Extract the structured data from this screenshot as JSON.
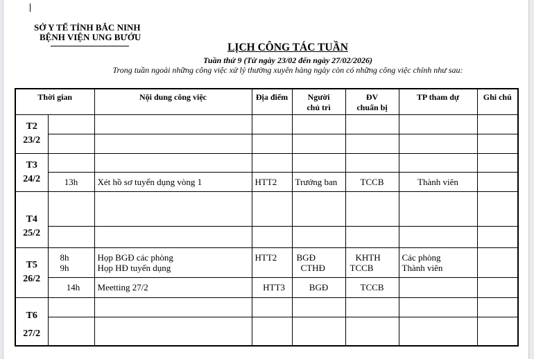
{
  "header": {
    "org_line1": "SỞ Y TẾ TỈNH BẮC NINH",
    "org_line2": "BỆNH VIỆN UNG BƯỚU",
    "title": "LỊCH CÔNG TÁC TUẦN",
    "subtitle": "Tuần thứ 9 (Từ ngày 23/02 đến ngày 27/02/2026)",
    "description": "Trong tuần ngoài những công việc xử lý thường xuyên hàng ngày còn có những công việc chính như sau:"
  },
  "table": {
    "columns": [
      "Thời gian",
      "Nội dung công việc",
      "Địa điểm",
      "Người chủ trì",
      "ĐV chuẩn bị",
      "TP tham dự",
      "Ghi chú"
    ],
    "col_head": {
      "nguoi1": "Người",
      "nguoi2": "chủ trì",
      "dv1": "ĐV",
      "dv2": "chuẩn bị"
    },
    "days": [
      {
        "day": "T2",
        "date": "23/2",
        "rows": [
          {},
          {}
        ]
      },
      {
        "day": "T3",
        "date": "24/2",
        "rows": [
          {},
          {
            "time": "13h",
            "content": "Xét hồ sơ tuyển dụng vòng 1",
            "place": "HTT2",
            "host": "Trưởng ban",
            "prep": "TCCB",
            "attend": "Thành viên"
          }
        ]
      },
      {
        "day": "T4",
        "date": "25/2",
        "rows": [
          {},
          {}
        ]
      },
      {
        "day": "T5",
        "date": "26/2",
        "rows": [
          {
            "time1": "8h",
            "time2": "9h",
            "content1": "Họp BGĐ các phòng",
            "content2": "Họp HĐ tuyển dụng",
            "place": "HTT2",
            "host1": "BGĐ",
            "host2": "CTHĐ",
            "prep1": "KHTH",
            "prep2": "TCCB",
            "attend1": "Các phòng",
            "attend2": "Thành viên"
          },
          {
            "time": "14h",
            "content": "Meetting 27/2",
            "place": "HTT3",
            "host": "BGĐ",
            "prep": "TCCB"
          }
        ]
      },
      {
        "day": "T6",
        "date": "27/2",
        "rows": [
          {},
          {}
        ]
      }
    ]
  }
}
